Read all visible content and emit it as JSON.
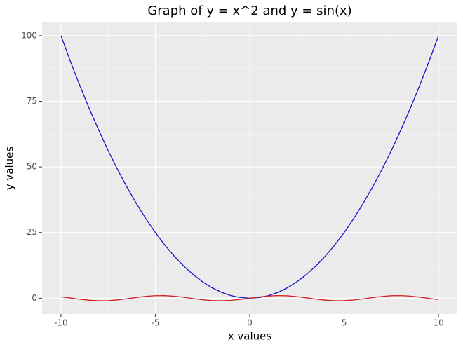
{
  "chart_data": {
    "type": "line",
    "title": "Graph of y = x^2 and y = sin(x)",
    "x_label": "x values",
    "y_label": "y values",
    "x": [
      -10,
      -9.5,
      -9,
      -8.5,
      -8,
      -7.5,
      -7,
      -6.5,
      -6,
      -5.5,
      -5,
      -4.5,
      -4,
      -3.5,
      -3,
      -2.5,
      -2,
      -1.5,
      -1,
      -0.5,
      0,
      0.5,
      1,
      1.5,
      2,
      2.5,
      3,
      3.5,
      4,
      4.5,
      5,
      5.5,
      6,
      6.5,
      7,
      7.5,
      8,
      8.5,
      9,
      9.5,
      10
    ],
    "series": [
      {
        "color": "#1414c8",
        "values": [
          100,
          90.25,
          81,
          72.25,
          64,
          56.25,
          49,
          42.25,
          36,
          30.25,
          25,
          20.25,
          16,
          12.25,
          9,
          6.25,
          4,
          2.25,
          1,
          0.25,
          0,
          0.25,
          1,
          2.25,
          4,
          6.25,
          9,
          12.25,
          16,
          20.25,
          25,
          30.25,
          36,
          42.25,
          49,
          56.25,
          64,
          72.25,
          81,
          90.25,
          100
        ]
      },
      {
        "color": "#d0201c",
        "values": [
          0.544,
          0.075,
          -0.412,
          -0.798,
          -0.989,
          -0.938,
          -0.657,
          -0.215,
          0.279,
          0.706,
          0.959,
          0.978,
          0.757,
          0.351,
          -0.141,
          -0.598,
          -0.909,
          -0.997,
          -0.841,
          -0.479,
          0,
          0.479,
          0.841,
          0.997,
          0.909,
          0.598,
          0.141,
          -0.351,
          -0.757,
          -0.978,
          -0.959,
          -0.706,
          -0.279,
          0.215,
          0.657,
          0.938,
          0.989,
          0.798,
          0.412,
          -0.075,
          -0.544
        ]
      }
    ],
    "xlim": [
      -11,
      11
    ],
    "ylim": [
      -6.05,
      105.05
    ],
    "xticks": [
      -10,
      -5,
      0,
      5,
      10
    ],
    "yticks": [
      0,
      25,
      50,
      75,
      100
    ],
    "grid": true
  }
}
